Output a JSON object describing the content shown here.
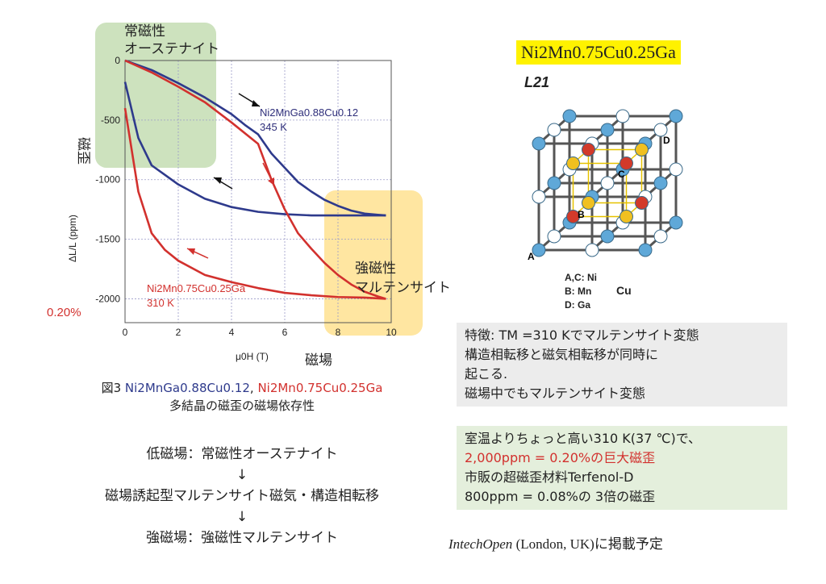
{
  "chart_data": {
    "type": "line",
    "xlabel": "μ0H (T)",
    "ylabel": "ΔL/L (ppm)",
    "xlim": [
      0,
      10
    ],
    "ylim": [
      -2200,
      0
    ],
    "x_ticks": [
      "0",
      "2",
      "4",
      "6",
      "8",
      "10"
    ],
    "y_ticks": [
      "0",
      "-500",
      "-1000",
      "-1500",
      "-2000"
    ],
    "grid": true,
    "series": [
      {
        "name": "Ni2MnGa0.88Cu0.12 345 K (up)",
        "color": "#2e3a8c",
        "x": [
          0,
          1,
          2,
          3,
          4,
          4.5,
          5,
          5.5,
          6,
          6.5,
          7,
          7.5,
          8,
          8.5,
          9,
          9.5,
          9.8
        ],
        "y": [
          0,
          -80,
          -190,
          -310,
          -450,
          -540,
          -620,
          -780,
          -900,
          -1020,
          -1100,
          -1170,
          -1220,
          -1260,
          -1285,
          -1295,
          -1300
        ]
      },
      {
        "name": "Ni2MnGa0.88Cu0.12 345 K (down)",
        "color": "#2e3a8c",
        "x": [
          9.8,
          9,
          8,
          7,
          6,
          5,
          4,
          3,
          2,
          1.5,
          1,
          0.5,
          0
        ],
        "y": [
          -1300,
          -1300,
          -1300,
          -1300,
          -1290,
          -1270,
          -1230,
          -1160,
          -1040,
          -960,
          -880,
          -650,
          -180
        ]
      },
      {
        "name": "Ni2Mn0.75Cu0.25Ga 310 K (up)",
        "color": "#d2312e",
        "x": [
          0,
          1,
          2,
          3,
          4,
          5,
          5.5,
          6,
          6.5,
          7,
          7.5,
          8,
          8.5,
          9,
          9.5,
          9.8
        ],
        "y": [
          0,
          -100,
          -220,
          -350,
          -520,
          -700,
          -1000,
          -1250,
          -1450,
          -1580,
          -1700,
          -1800,
          -1880,
          -1940,
          -1980,
          -2000
        ]
      },
      {
        "name": "Ni2Mn0.75Cu0.25Ga 310 K (down)",
        "color": "#d2312e",
        "x": [
          9.8,
          9,
          8,
          7,
          6,
          5,
          4,
          3,
          2,
          1.5,
          1,
          0.5,
          0
        ],
        "y": [
          -2000,
          -1990,
          -1985,
          -1970,
          -1950,
          -1910,
          -1860,
          -1800,
          -1680,
          -1590,
          -1450,
          -1100,
          -400
        ]
      }
    ],
    "annotations": {
      "blue_formula": "Ni2MnGa0.88Cu0.12",
      "blue_temp": "345 K",
      "red_formula": "Ni2Mn0.75Cu0.25Ga",
      "red_temp": "310 K",
      "percent": "0.20%",
      "paramag_austenite_1": "常磁性",
      "paramag_austenite_2": "オーステナイト",
      "ferromag_martensite_1": "強磁性",
      "ferromag_martensite_2": "マルテンサイト",
      "y_jp": "磁歪",
      "x_jp": "磁場"
    }
  },
  "figure_caption": {
    "line1_prefix": "図3",
    "formula_blue": "Ni2MnGa0.88Cu0.12",
    "sep": ",",
    "formula_red": "Ni2Mn0.75Cu0.25Ga",
    "line2": "多結晶の磁歪の磁場依存性"
  },
  "flow": {
    "step1": "低磁場：常磁性オーステナイト",
    "arrow": "↓",
    "step2": "磁場誘起型マルテンサイト磁気・構造相転移",
    "step3": "強磁場：強磁性マルテンサイト"
  },
  "crystal": {
    "title": "Ni2Mn0.75Cu0.25Ga",
    "structure": "L21",
    "legend_ac": "A,C: Ni",
    "legend_b": "B: Mn",
    "legend_d": "D: Ga",
    "legend_cu": "Cu",
    "site_a": "A",
    "site_b": "B",
    "site_c": "C",
    "site_d": "D"
  },
  "features_box": {
    "line1": "特徴: TM =310 Kでマルテンサイト変態",
    "line2": "構造相転移と磁気相転移が同時に",
    "line3": "起こる.",
    "line4": "磁場中でもマルテンサイト変態"
  },
  "highlight_box": {
    "line1": "室温よりちょっと高い310 K(37 ℃)で、",
    "line2": "2,000ppm = 0.20%の巨大磁歪",
    "line3": "市販の超磁歪材料Terfenol-D",
    "line4": "800ppm = 0.08%の 3倍の磁歪"
  },
  "publication_note": {
    "italic": "IntechOpen",
    "rest": " (London, UK)に掲載予定"
  },
  "colors": {
    "blue": "#2e3a8c",
    "red": "#d2312e",
    "green_region": "#bcd8a8",
    "orange_region": "#ffe08a",
    "title_yellow": "#fff200"
  }
}
